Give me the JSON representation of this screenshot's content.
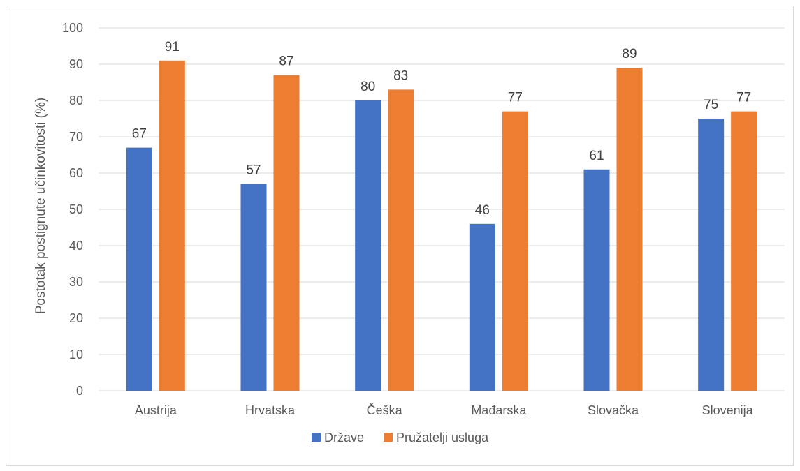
{
  "chart_data": {
    "type": "bar",
    "title": "",
    "xlabel": "",
    "ylabel": "Postotak postignute učinkovitosti (%)",
    "ylim": [
      0,
      100
    ],
    "yticks": [
      0,
      10,
      20,
      30,
      40,
      50,
      60,
      70,
      80,
      90,
      100
    ],
    "categories": [
      "Austrija",
      "Hrvatska",
      "Češka",
      "Mađarska",
      "Slovačka",
      "Slovenija"
    ],
    "series": [
      {
        "name": "Države",
        "color": "#4472C4",
        "values": [
          67,
          57,
          80,
          46,
          61,
          75
        ]
      },
      {
        "name": "Pružatelji usluga",
        "color": "#ED7D31",
        "values": [
          91,
          87,
          83,
          77,
          89,
          77
        ]
      }
    ],
    "grid": true,
    "legend_position": "bottom",
    "data_labels": true
  }
}
